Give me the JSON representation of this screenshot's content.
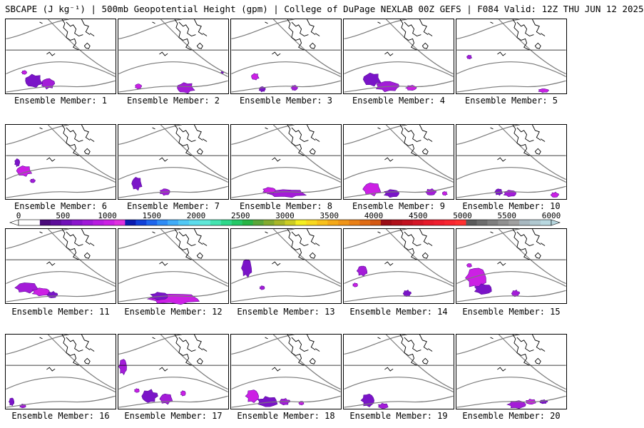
{
  "header": {
    "title": "SBCAPE (J kg⁻¹) | 500mb Geopotential Height (gpm) | College of DuPage NEXLAB 00Z GEFS | F084 Valid: 12Z THU JUN 12 2025"
  },
  "members": [
    {
      "label": "Ensemble Member: 1",
      "cape_coverage": "moderate"
    },
    {
      "label": "Ensemble Member: 2",
      "cape_coverage": "light"
    },
    {
      "label": "Ensemble Member: 3",
      "cape_coverage": "light"
    },
    {
      "label": "Ensemble Member: 4",
      "cape_coverage": "moderate"
    },
    {
      "label": "Ensemble Member: 5",
      "cape_coverage": "light"
    },
    {
      "label": "Ensemble Member: 6",
      "cape_coverage": "moderate"
    },
    {
      "label": "Ensemble Member: 7",
      "cape_coverage": "light"
    },
    {
      "label": "Ensemble Member: 8",
      "cape_coverage": "moderate"
    },
    {
      "label": "Ensemble Member: 9",
      "cape_coverage": "moderate"
    },
    {
      "label": "Ensemble Member: 10",
      "cape_coverage": "light"
    },
    {
      "label": "Ensemble Member: 11",
      "cape_coverage": "moderate"
    },
    {
      "label": "Ensemble Member: 12",
      "cape_coverage": "moderate"
    },
    {
      "label": "Ensemble Member: 13",
      "cape_coverage": "light"
    },
    {
      "label": "Ensemble Member: 14",
      "cape_coverage": "light"
    },
    {
      "label": "Ensemble Member: 15",
      "cape_coverage": "moderate"
    },
    {
      "label": "Ensemble Member: 16",
      "cape_coverage": "light"
    },
    {
      "label": "Ensemble Member: 17",
      "cape_coverage": "moderate"
    },
    {
      "label": "Ensemble Member: 18",
      "cape_coverage": "moderate"
    },
    {
      "label": "Ensemble Member: 19",
      "cape_coverage": "light"
    },
    {
      "label": "Ensemble Member: 20",
      "cape_coverage": "moderate"
    }
  ],
  "colorbar": {
    "ticks": [
      "0",
      "500",
      "1000",
      "1500",
      "2000",
      "2500",
      "3000",
      "3500",
      "4000",
      "4500",
      "5000",
      "5500",
      "6000"
    ],
    "colors": [
      "#ffffff",
      "#ffffff",
      "#4a0a7a",
      "#5c0c9a",
      "#7010b8",
      "#8a14cc",
      "#a018d8",
      "#b81ce0",
      "#cc20e4",
      "#e030e0",
      "#0a1ab0",
      "#1040d8",
      "#1e66ee",
      "#2e8cf6",
      "#40acf8",
      "#52c8f4",
      "#5cdcec",
      "#60e8d8",
      "#44e4b0",
      "#2ed88a",
      "#24c866",
      "#28b444",
      "#5aa638",
      "#82aa2e",
      "#a8b628",
      "#cccc22",
      "#f4ee20",
      "#f8d81e",
      "#f8c01a",
      "#f4a818",
      "#f09418",
      "#ea8016",
      "#e06c14",
      "#d45812",
      "#9a0c14",
      "#b0101a",
      "#c21220",
      "#d41626",
      "#e61a2a",
      "#f01e2e",
      "#f82630",
      "#ff3030",
      "#5a5a5a",
      "#6c6c6c",
      "#7e7e7e",
      "#909090",
      "#a0a0a0",
      "#a8b8c0",
      "#b0c8d0",
      "#b8d8e0"
    ]
  }
}
